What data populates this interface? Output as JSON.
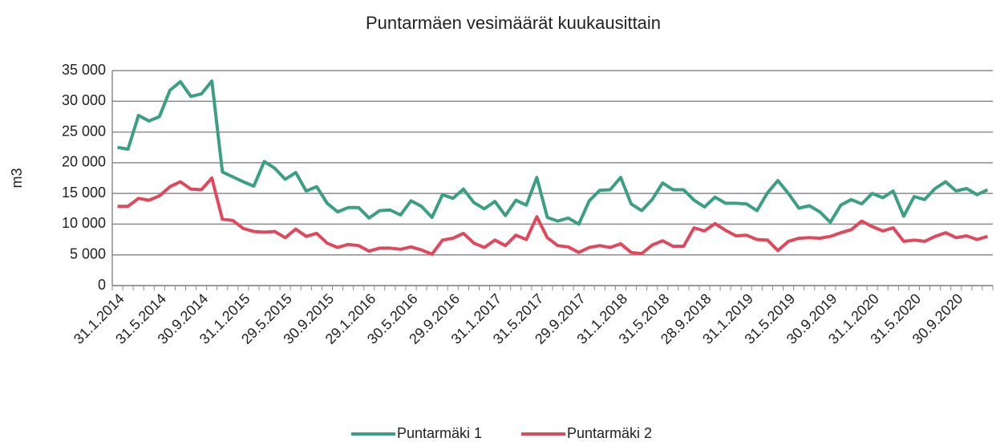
{
  "chart_data": {
    "type": "line",
    "title": "Puntarmäen vesimäärät kuukausittain",
    "y_label": "m3",
    "categories": [
      "31.1.2014",
      null,
      null,
      null,
      "31.5.2014",
      null,
      null,
      null,
      "30.9.2014",
      null,
      null,
      null,
      "31.1.2015",
      null,
      null,
      null,
      "29.5.2015",
      null,
      null,
      null,
      "30.9.2015",
      null,
      null,
      null,
      "29.1.2016",
      null,
      null,
      null,
      "30.5.2016",
      null,
      null,
      null,
      "29.9.2016",
      null,
      null,
      null,
      "31.1.2017",
      null,
      null,
      null,
      "31.5.2017",
      null,
      null,
      null,
      "29.9.2017",
      null,
      null,
      null,
      "31.1.2018",
      null,
      null,
      null,
      "31.5.2018",
      null,
      null,
      null,
      "28.9.2018",
      null,
      null,
      null,
      "31.1.2019",
      null,
      null,
      null,
      "31.5.2019",
      null,
      null,
      null,
      "30.9.2019",
      null,
      null,
      null,
      "31.1.2020",
      null,
      null,
      null,
      "31.5.2020",
      null,
      null,
      null,
      "30.9.2020",
      null,
      null,
      null
    ],
    "series": [
      {
        "name": "Puntarmäki 1",
        "color": "#3a9f84",
        "values": [
          22500,
          22200,
          27700,
          26800,
          27500,
          31800,
          33200,
          30800,
          31200,
          33300,
          18500,
          17700,
          16900,
          16200,
          20200,
          19100,
          17300,
          18400,
          15400,
          16100,
          13400,
          12000,
          12700,
          12700,
          11000,
          12200,
          12300,
          11500,
          13800,
          12900,
          11100,
          14800,
          14200,
          15700,
          13500,
          12500,
          13700,
          11400,
          13900,
          13100,
          17600,
          11100,
          10500,
          11000,
          10000,
          13800,
          15500,
          15600,
          17600,
          13300,
          12200,
          14000,
          16700,
          15600,
          15600,
          13900,
          12800,
          14400,
          13400,
          13400,
          13300,
          12200,
          15100,
          17100,
          15000,
          12600,
          13000,
          12000,
          10300,
          13100,
          14000,
          13300,
          15000,
          14300,
          15400,
          11300,
          14500,
          14000,
          15800,
          16900,
          15400,
          15800,
          14800,
          15600
        ]
      },
      {
        "name": "Puntarmäki 2",
        "color": "#e0485c",
        "values": [
          12900,
          12900,
          14200,
          13900,
          14600,
          16100,
          16900,
          15700,
          15600,
          17500,
          10800,
          10600,
          9300,
          8800,
          8700,
          8800,
          7800,
          9200,
          8000,
          8500,
          6900,
          6200,
          6700,
          6500,
          5600,
          6100,
          6100,
          5900,
          6300,
          5800,
          5100,
          7400,
          7700,
          8500,
          6900,
          6200,
          7400,
          6500,
          8200,
          7500,
          11200,
          7800,
          6500,
          6300,
          5400,
          6200,
          6500,
          6200,
          6800,
          5400,
          5200,
          6600,
          7300,
          6400,
          6400,
          9400,
          8900,
          10100,
          9000,
          8100,
          8200,
          7500,
          7400,
          5700,
          7200,
          7700,
          7800,
          7700,
          8000,
          8600,
          9100,
          10500,
          9600,
          8900,
          9400,
          7200,
          7400,
          7200,
          8000,
          8600,
          7800,
          8100,
          7500,
          8000
        ]
      }
    ],
    "ylim": [
      0,
      35000
    ],
    "yticks": [
      0,
      {
        "value": 5000,
        "label": "5 000"
      },
      {
        "value": 10000,
        "label": "10 000"
      },
      {
        "value": 15000,
        "label": "15 000"
      },
      {
        "value": 20000,
        "label": "20 000"
      },
      {
        "value": 25000,
        "label": "25 000"
      },
      {
        "value": 30000,
        "label": "30 000"
      },
      {
        "value": 35000,
        "label": "35 000"
      }
    ],
    "grid": true,
    "legend": "bottom"
  }
}
